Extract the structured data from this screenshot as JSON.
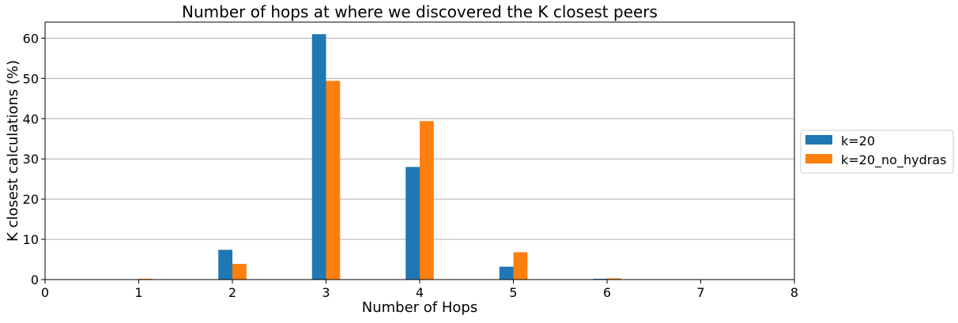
{
  "chart_data": {
    "type": "bar",
    "title": "Number of hops at where we discovered the K closest peers",
    "xlabel": "Number of Hops",
    "ylabel": "K closest calculations (%)",
    "xlim": [
      0,
      8
    ],
    "ylim": [
      0,
      64
    ],
    "xticks": [
      0,
      1,
      2,
      3,
      4,
      5,
      6,
      7,
      8
    ],
    "yticks": [
      0,
      10,
      20,
      30,
      40,
      50,
      60
    ],
    "grid": "y",
    "legend_position": "right",
    "x": [
      1,
      2,
      3,
      4,
      5,
      6
    ],
    "series": [
      {
        "name": "k=20",
        "color": "#1f77b4",
        "values": [
          0.0,
          7.4,
          61.0,
          28.0,
          3.2,
          0.2
        ]
      },
      {
        "name": "k=20_no_hydras",
        "color": "#ff7f0e",
        "values": [
          0.2,
          3.9,
          49.4,
          39.4,
          6.8,
          0.3
        ]
      }
    ]
  }
}
